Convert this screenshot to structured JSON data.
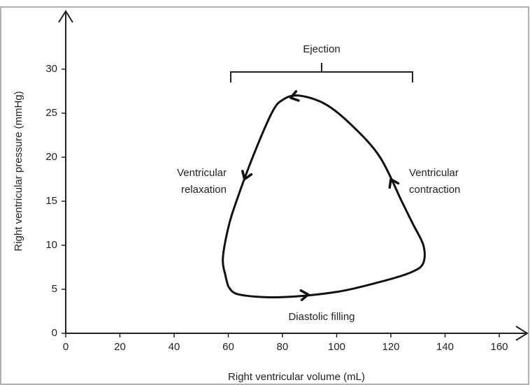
{
  "chart_data": {
    "type": "line",
    "xlabel": "Right ventricular volume (mL)",
    "ylabel": "Right ventricular pressure (mmHg)",
    "x": [
      60,
      64,
      79,
      100,
      118,
      128,
      132,
      132,
      128,
      124,
      116,
      106,
      96,
      86,
      80,
      76,
      69,
      63,
      60,
      58,
      59,
      60
    ],
    "values": [
      5.3,
      4.4,
      4.1,
      4.7,
      6,
      7,
      8,
      10,
      12.5,
      15,
      20,
      23.5,
      26,
      27,
      26.5,
      25,
      20,
      15,
      12,
      8.5,
      6.5,
      5.3
    ],
    "color": "#111111",
    "xlim": [
      0,
      170
    ],
    "ylim": [
      0,
      36
    ],
    "xticks": [
      0,
      20,
      40,
      60,
      80,
      100,
      120,
      140,
      160
    ],
    "yticks": [
      0,
      5,
      10,
      15,
      20,
      25,
      30
    ],
    "annotations": [
      {
        "lines": [
          "Ejection"
        ]
      },
      {
        "lines": [
          "Ventricular",
          "relaxation"
        ]
      },
      {
        "lines": [
          "Ventricular",
          "contraction"
        ]
      },
      {
        "lines": [
          "Diastolic filling"
        ]
      }
    ]
  }
}
